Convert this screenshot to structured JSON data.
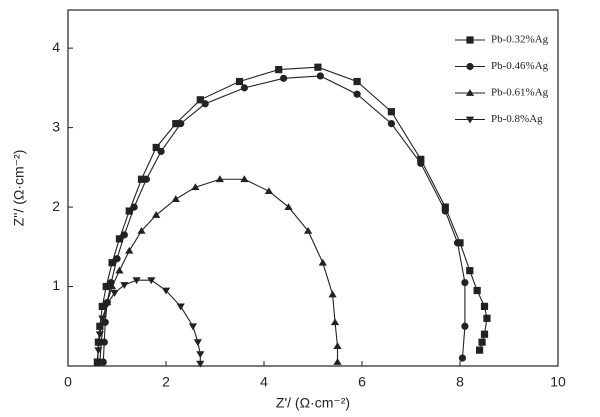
{
  "chart_data": {
    "type": "line",
    "x_label": "Z'/ (Ω·cm⁻²)",
    "y_label": "Z''/ (Ω·cm⁻²)",
    "xlim": [
      0,
      10
    ],
    "xticks": [
      0,
      2,
      4,
      6,
      8,
      10
    ],
    "ylim": [
      0,
      4.48
    ],
    "yticks": [
      1,
      2,
      3,
      4
    ],
    "grid": false,
    "legend": "upper right",
    "series": [
      {
        "name": "Pb-0.32%Ag",
        "color": "#222222",
        "marker": "square",
        "x": [
          0.6,
          0.62,
          0.65,
          0.7,
          0.78,
          0.9,
          1.05,
          1.25,
          1.5,
          1.8,
          2.2,
          2.7,
          3.5,
          4.3,
          5.1,
          5.9,
          6.6,
          7.2,
          7.7,
          8.0,
          8.2,
          8.35,
          8.5,
          8.55,
          8.5,
          8.45,
          8.4
        ],
        "values": [
          0.05,
          0.3,
          0.5,
          0.75,
          1.0,
          1.3,
          1.6,
          1.95,
          2.35,
          2.75,
          3.05,
          3.35,
          3.58,
          3.73,
          3.76,
          3.58,
          3.2,
          2.6,
          2.0,
          1.55,
          1.2,
          0.95,
          0.75,
          0.6,
          0.4,
          0.3,
          0.2
        ]
      },
      {
        "name": "Pb-0.46%Ag",
        "color": "#222222",
        "marker": "circle",
        "x": [
          0.72,
          0.74,
          0.76,
          0.8,
          0.88,
          1.0,
          1.15,
          1.35,
          1.6,
          1.9,
          2.3,
          2.8,
          3.6,
          4.4,
          5.15,
          5.9,
          6.6,
          7.2,
          7.7,
          7.95,
          8.1,
          8.1,
          8.05
        ],
        "values": [
          0.05,
          0.3,
          0.55,
          0.8,
          1.05,
          1.35,
          1.65,
          2.0,
          2.35,
          2.7,
          3.05,
          3.3,
          3.5,
          3.62,
          3.65,
          3.42,
          3.05,
          2.55,
          1.95,
          1.55,
          1.05,
          0.5,
          0.1
        ]
      },
      {
        "name": "Pb-0.61%Ag",
        "color": "#222222",
        "marker": "triangle-up",
        "x": [
          0.65,
          0.68,
          0.72,
          0.8,
          0.9,
          1.05,
          1.25,
          1.5,
          1.8,
          2.2,
          2.6,
          3.1,
          3.6,
          4.1,
          4.5,
          4.9,
          5.2,
          5.4,
          5.45,
          5.5,
          5.5
        ],
        "values": [
          0.05,
          0.3,
          0.55,
          0.8,
          1.0,
          1.2,
          1.45,
          1.7,
          1.9,
          2.1,
          2.25,
          2.35,
          2.35,
          2.2,
          2.0,
          1.7,
          1.3,
          0.9,
          0.55,
          0.25,
          0.05
        ]
      },
      {
        "name": "Pb-0.8%Ag",
        "color": "#222222",
        "marker": "triangle-down",
        "x": [
          0.6,
          0.62,
          0.65,
          0.7,
          0.8,
          0.95,
          1.15,
          1.4,
          1.7,
          2.0,
          2.3,
          2.55,
          2.65,
          2.7,
          2.7
        ],
        "values": [
          0.05,
          0.2,
          0.4,
          0.6,
          0.78,
          0.92,
          1.02,
          1.08,
          1.08,
          0.95,
          0.75,
          0.5,
          0.3,
          0.15,
          0.03
        ]
      }
    ]
  }
}
